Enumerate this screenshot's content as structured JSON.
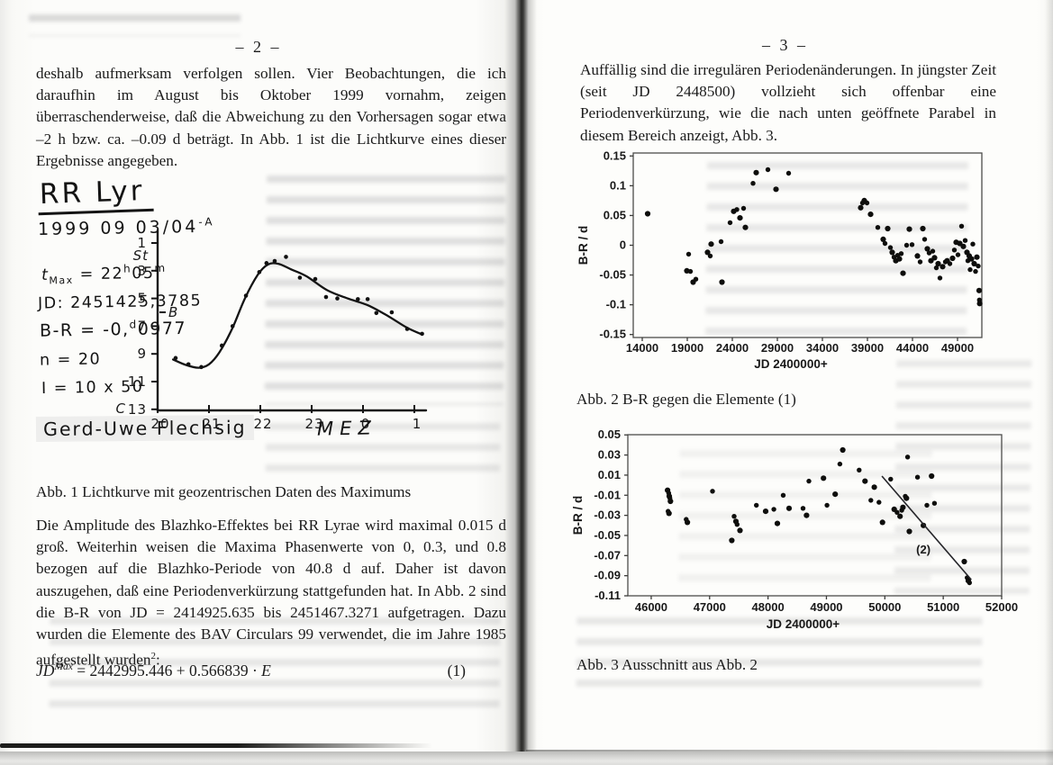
{
  "scan": {
    "paper_color": "#fcfcfa",
    "ink_color": "#1b1b1b",
    "accent_black": "#111111"
  },
  "left_page": {
    "page_number": "– 2 –",
    "paragraph1": "deshalb aufmerksam verfolgen sollen. Vier Beobachtungen, die ich daraufhin im August bis Oktober 1999 vornahm, zeigen überraschenderweise, daß die Abweichung zu den Vorhersagen sogar etwa –2 h bzw. ca. –0.09 d beträgt. In Abb. 1 ist die Lichtkurve eines dieser Ergebnisse angegeben.",
    "figure1": {
      "title": "RR Lyr",
      "date": "1999 09 03/04",
      "date_sup": "-A",
      "tmax_var": "t",
      "tmax_sub": "Max",
      "tmax_eq": " = 22",
      "tmax_sup1": "h",
      "tmax_mid": "05",
      "tmax_sup2": "m",
      "jd_line": "JD: 2451425,3785",
      "br_pre": "B-R = -0,",
      "br_sup": "d",
      "br_post": "0977",
      "n_line": "n = 20",
      "i_line": "I = 10 x 50",
      "signature": "Gerd-Uwe Flechsig",
      "x_axis_label": "MEZ"
    },
    "caption1": "Abb. 1 Lichtkurve mit geozentrischen Daten des Maximums",
    "paragraph2": "Die Amplitude des Blazhko-Effektes bei RR Lyrae wird maximal 0.015 d groß. Weiterhin weisen die Maxima Phasenwerte von 0, 0.3, und 0.8 bezogen auf die Blazhko-Periode von 40.8 d auf. Daher ist davon auszugehen, daß eine Periodenverkürzung stattgefunden hat. In Abb. 2 sind die B-R von JD = 2414925.635 bis 2451467.3271 aufgetragen. Dazu wurden die Elemente des BAV Circulars 99 verwendet, die im Jahre 1985 aufgestellt wurden",
    "paragraph2_sup": "2",
    "paragraph2_end": ":",
    "equation": {
      "lhs": "JD",
      "sub": "Max",
      "body": " = 2442995.446 + 0.566839 · ",
      "variable": "E",
      "number": "(1)"
    }
  },
  "right_page": {
    "page_number": "– 3 –",
    "paragraph1": "Auffällig sind die irregulären Periodenänderungen. In jüngster Zeit (seit JD 2448500) vollzieht sich offenbar eine Periodenverkürzung, wie die nach unten geöffnete Parabel in diesem Bereich anzeigt, Abb. 3.",
    "caption2": "Abb. 2 B-R gegen die Elemente (1)",
    "caption3": "Abb. 3 Ausschnitt aus Abb. 2"
  },
  "chart_data": [
    {
      "id": "abb1",
      "type": "line",
      "title": "RR Lyr",
      "subtitle": "1999 09 03/04 -A",
      "annotations": {
        "t_max": "22h05m MEZ",
        "jd_max": "2451425,3785",
        "b_minus_r": "-0,0977 d",
        "n_observations": 20,
        "instrument": "I = 10 x 50",
        "observer": "Gerd-Uwe Flechsig"
      },
      "xlabel": "MEZ",
      "x_ticks": [
        20,
        21,
        22,
        23,
        24,
        25
      ],
      "x_tick_labels": [
        "20",
        "21",
        "22",
        "23",
        "0",
        "1"
      ],
      "y_ticks": [
        1,
        3,
        5,
        7,
        9,
        11,
        13
      ],
      "y_tick_labels": [
        "1",
        "3",
        "5",
        "7",
        "9",
        "11",
        "13"
      ],
      "y_axis_extra": [
        {
          "text": "St",
          "mag": 1.9,
          "side": "left"
        },
        {
          "text": "B",
          "mag": 6.0,
          "side": "right"
        },
        {
          "text": "C",
          "mag": 13.0,
          "side": "farleft"
        }
      ],
      "points": [
        [
          20.35,
          9.3
        ],
        [
          20.6,
          9.75
        ],
        [
          20.85,
          9.95
        ],
        [
          21.25,
          8.4
        ],
        [
          21.46,
          7.0
        ],
        [
          21.72,
          4.8
        ],
        [
          21.98,
          3.1
        ],
        [
          22.12,
          2.45
        ],
        [
          22.28,
          2.3
        ],
        [
          22.5,
          2.0
        ],
        [
          22.77,
          3.5
        ],
        [
          23.07,
          3.6
        ],
        [
          23.28,
          4.9
        ],
        [
          23.5,
          5.0
        ],
        [
          23.9,
          5.05
        ],
        [
          24.09,
          5.05
        ],
        [
          24.26,
          6.05
        ],
        [
          24.56,
          6.0
        ],
        [
          24.86,
          7.2
        ],
        [
          25.15,
          7.55
        ]
      ],
      "curve": [
        [
          20.3,
          9.4
        ],
        [
          20.55,
          9.8
        ],
        [
          20.8,
          10.0
        ],
        [
          21.0,
          9.75
        ],
        [
          21.2,
          8.9
        ],
        [
          21.45,
          7.2
        ],
        [
          21.7,
          5.0
        ],
        [
          21.95,
          3.3
        ],
        [
          22.15,
          2.55
        ],
        [
          22.35,
          2.5
        ],
        [
          22.6,
          2.9
        ],
        [
          22.9,
          3.4
        ],
        [
          23.3,
          4.4
        ],
        [
          23.7,
          5.0
        ],
        [
          24.1,
          5.5
        ],
        [
          24.5,
          6.3
        ],
        [
          24.85,
          7.1
        ],
        [
          25.15,
          7.6
        ]
      ]
    },
    {
      "id": "abb2",
      "type": "scatter",
      "caption": "Abb. 2 B-R gegen die Elemente (1)",
      "xlabel": "JD 2400000+",
      "ylabel": "B-R / d",
      "xlim": [
        13000,
        51700
      ],
      "ylim": [
        -0.155,
        0.155
      ],
      "x_tick_labels": [
        "14000",
        "19000",
        "24000",
        "29000",
        "34000",
        "39000",
        "44000",
        "49000"
      ],
      "y_tick_labels": [
        "0.15",
        "0.1",
        "0.05",
        "0",
        "-0.05",
        "-0.1",
        "-0.15"
      ],
      "points": [
        [
          14600,
          0.053
        ],
        [
          19150,
          -0.015
        ],
        [
          18950,
          -0.043
        ],
        [
          19350,
          -0.044
        ],
        [
          19650,
          -0.062
        ],
        [
          19950,
          -0.057
        ],
        [
          21250,
          -0.012
        ],
        [
          21550,
          -0.018
        ],
        [
          21650,
          0.002
        ],
        [
          22750,
          0.006
        ],
        [
          22850,
          -0.062
        ],
        [
          23750,
          0.038
        ],
        [
          24150,
          0.057
        ],
        [
          24500,
          0.06
        ],
        [
          24850,
          0.046
        ],
        [
          25250,
          0.062
        ],
        [
          25450,
          0.03
        ],
        [
          26300,
          0.104
        ],
        [
          26650,
          0.122
        ],
        [
          27950,
          0.127
        ],
        [
          28850,
          0.094
        ],
        [
          30250,
          0.121
        ],
        [
          38250,
          0.063
        ],
        [
          38450,
          0.071
        ],
        [
          38650,
          0.075
        ],
        [
          38950,
          0.071
        ],
        [
          39350,
          0.052
        ],
        [
          40150,
          0.03
        ],
        [
          40750,
          0.01
        ],
        [
          40950,
          0.003
        ],
        [
          41250,
          0.028
        ],
        [
          41550,
          -0.004
        ],
        [
          41750,
          -0.012
        ],
        [
          41950,
          -0.02
        ],
        [
          42150,
          -0.026
        ],
        [
          42350,
          -0.017
        ],
        [
          42550,
          -0.023
        ],
        [
          42750,
          -0.014
        ],
        [
          42950,
          -0.047
        ],
        [
          43350,
          0.0
        ],
        [
          43650,
          0.027
        ],
        [
          43950,
          0.001
        ],
        [
          44550,
          -0.018
        ],
        [
          44850,
          -0.028
        ],
        [
          45150,
          0.028
        ],
        [
          45350,
          0.01
        ],
        [
          45650,
          -0.006
        ],
        [
          45850,
          -0.013
        ],
        [
          46050,
          -0.026
        ],
        [
          46250,
          -0.01
        ],
        [
          46450,
          -0.021
        ],
        [
          46650,
          -0.038
        ],
        [
          46850,
          -0.031
        ],
        [
          47050,
          -0.055
        ],
        [
          47350,
          -0.036
        ],
        [
          47650,
          -0.028
        ],
        [
          47850,
          -0.026
        ],
        [
          48150,
          -0.031
        ],
        [
          48450,
          -0.022
        ],
        [
          48650,
          -0.008
        ],
        [
          48850,
          0.005
        ],
        [
          49050,
          -0.016
        ],
        [
          49250,
          0.003
        ],
        [
          49450,
          0.032
        ],
        [
          49650,
          -0.002
        ],
        [
          49850,
          0.008
        ],
        [
          50050,
          -0.012
        ],
        [
          50150,
          -0.026
        ],
        [
          50300,
          -0.018
        ],
        [
          50400,
          -0.041
        ],
        [
          50550,
          -0.023
        ],
        [
          50700,
          0.002
        ],
        [
          50850,
          -0.031
        ],
        [
          51000,
          -0.044
        ],
        [
          51150,
          -0.02
        ],
        [
          51300,
          -0.035
        ],
        [
          51400,
          -0.076
        ],
        [
          51430,
          -0.092
        ],
        [
          51460,
          -0.098
        ]
      ]
    },
    {
      "id": "abb3",
      "type": "scatter",
      "caption": "Abb. 3 Ausschnitt aus Abb. 2",
      "xlabel": "JD 2400000+",
      "ylabel": "B-R / d",
      "xlim": [
        45600,
        52000
      ],
      "ylim": [
        -0.11,
        0.0502
      ],
      "x_tick_labels": [
        "46000",
        "47000",
        "48000",
        "49000",
        "50000",
        "51000",
        "52000"
      ],
      "y_tick_labels": [
        "0.05",
        "0.03",
        "0.01",
        "-0.01",
        "-0.03",
        "-0.05",
        "-0.07",
        "-0.09",
        "-0.11"
      ],
      "points": [
        [
          46280,
          -0.005
        ],
        [
          46300,
          -0.008
        ],
        [
          46310,
          -0.011
        ],
        [
          46320,
          -0.013
        ],
        [
          46330,
          -0.016
        ],
        [
          46290,
          -0.026
        ],
        [
          46305,
          -0.028
        ],
        [
          46600,
          -0.034
        ],
        [
          46620,
          -0.037
        ],
        [
          47050,
          -0.006
        ],
        [
          47380,
          -0.055
        ],
        [
          47420,
          -0.031
        ],
        [
          47450,
          -0.036
        ],
        [
          47470,
          -0.039
        ],
        [
          47520,
          -0.045
        ],
        [
          47800,
          -0.02
        ],
        [
          47960,
          -0.026
        ],
        [
          48100,
          -0.024
        ],
        [
          48160,
          -0.038
        ],
        [
          48260,
          -0.01
        ],
        [
          48360,
          -0.023
        ],
        [
          48600,
          -0.023
        ],
        [
          48660,
          -0.03
        ],
        [
          48700,
          0.004
        ],
        [
          48950,
          0.007
        ],
        [
          49010,
          -0.02
        ],
        [
          49150,
          -0.009
        ],
        [
          49230,
          0.021
        ],
        [
          49280,
          0.035
        ],
        [
          49560,
          0.015
        ],
        [
          49660,
          0.004
        ],
        [
          49760,
          -0.015
        ],
        [
          49820,
          -0.002
        ],
        [
          49900,
          -0.017
        ],
        [
          49960,
          -0.037
        ],
        [
          50100,
          0.006
        ],
        [
          50160,
          -0.024
        ],
        [
          50210,
          -0.027
        ],
        [
          50260,
          -0.031
        ],
        [
          50290,
          -0.025
        ],
        [
          50310,
          -0.022
        ],
        [
          50350,
          -0.011
        ],
        [
          50370,
          -0.013
        ],
        [
          50390,
          0.028
        ],
        [
          50420,
          -0.046
        ],
        [
          50560,
          0.008
        ],
        [
          50660,
          -0.04
        ],
        [
          50720,
          -0.02
        ],
        [
          50800,
          0.009
        ],
        [
          50850,
          -0.018
        ],
        [
          51360,
          -0.076
        ],
        [
          51410,
          -0.092
        ],
        [
          51430,
          -0.095
        ],
        [
          51450,
          -0.097
        ]
      ],
      "trend": {
        "x1": 49950,
        "y1": 0.009,
        "x2": 51480,
        "y2": -0.094,
        "label": "(2)",
        "label_x": 50660,
        "label_y": -0.068
      }
    }
  ]
}
